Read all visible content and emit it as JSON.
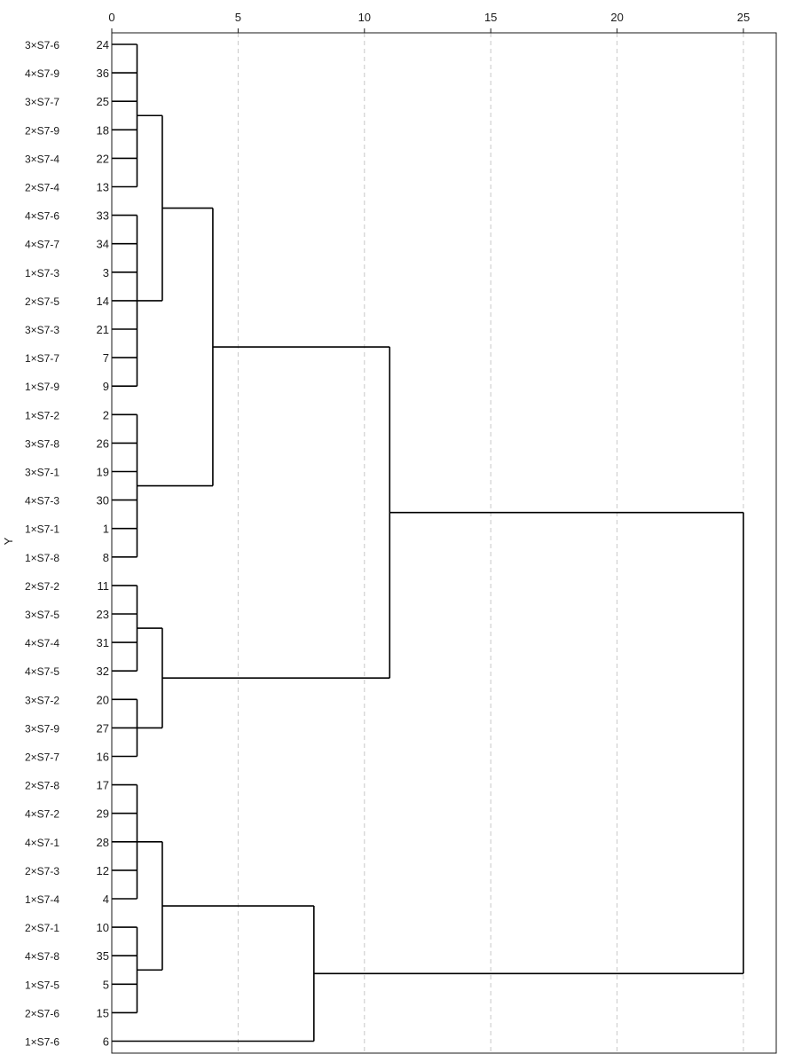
{
  "chart_data": {
    "type": "dendrogram",
    "title": "",
    "ylabel": "Y",
    "xlabel": "",
    "xlim": [
      0,
      25
    ],
    "x_ticks": [
      0,
      5,
      10,
      15,
      20,
      25
    ],
    "grid": "vertical dashed",
    "leaves": [
      {
        "name": "3×S7-6",
        "id": "24"
      },
      {
        "name": "4×S7-9",
        "id": "36"
      },
      {
        "name": "3×S7-7",
        "id": "25"
      },
      {
        "name": "2×S7-9",
        "id": "18"
      },
      {
        "name": "3×S7-4",
        "id": "22"
      },
      {
        "name": "2×S7-4",
        "id": "13"
      },
      {
        "name": "4×S7-6",
        "id": "33"
      },
      {
        "name": "4×S7-7",
        "id": "34"
      },
      {
        "name": "1×S7-3",
        "id": "3"
      },
      {
        "name": "2×S7-5",
        "id": "14"
      },
      {
        "name": "3×S7-3",
        "id": "21"
      },
      {
        "name": "1×S7-7",
        "id": "7"
      },
      {
        "name": "1×S7-9",
        "id": "9"
      },
      {
        "name": "1×S7-2",
        "id": "2"
      },
      {
        "name": "3×S7-8",
        "id": "26"
      },
      {
        "name": "3×S7-1",
        "id": "19"
      },
      {
        "name": "4×S7-3",
        "id": "30"
      },
      {
        "name": "1×S7-1",
        "id": "1"
      },
      {
        "name": "1×S7-8",
        "id": "8"
      },
      {
        "name": "2×S7-2",
        "id": "11"
      },
      {
        "name": "3×S7-5",
        "id": "23"
      },
      {
        "name": "4×S7-4",
        "id": "31"
      },
      {
        "name": "4×S7-5",
        "id": "32"
      },
      {
        "name": "3×S7-2",
        "id": "20"
      },
      {
        "name": "3×S7-9",
        "id": "27"
      },
      {
        "name": "2×S7-7",
        "id": "16"
      },
      {
        "name": "2×S7-8",
        "id": "17"
      },
      {
        "name": "4×S7-2",
        "id": "29"
      },
      {
        "name": "4×S7-1",
        "id": "28"
      },
      {
        "name": "2×S7-3",
        "id": "12"
      },
      {
        "name": "1×S7-4",
        "id": "4"
      },
      {
        "name": "2×S7-1",
        "id": "10"
      },
      {
        "name": "4×S7-8",
        "id": "35"
      },
      {
        "name": "1×S7-5",
        "id": "5"
      },
      {
        "name": "2×S7-6",
        "id": "15"
      },
      {
        "name": "1×S7-6",
        "id": "6"
      }
    ],
    "merges": [
      {
        "id": "A",
        "height": 1,
        "children": [
          0,
          1,
          2,
          3,
          4,
          5
        ]
      },
      {
        "id": "B",
        "height": 1,
        "children": [
          6,
          7,
          8,
          9,
          10,
          11,
          12
        ]
      },
      {
        "id": "C",
        "height": 1,
        "children": [
          13,
          14,
          15,
          16,
          17,
          18
        ]
      },
      {
        "id": "D",
        "height": 1,
        "children": [
          19,
          20,
          21,
          22
        ]
      },
      {
        "id": "E",
        "height": 1,
        "children": [
          23,
          24,
          25
        ]
      },
      {
        "id": "F",
        "height": 1,
        "children": [
          26,
          27,
          28,
          29,
          30
        ]
      },
      {
        "id": "G",
        "height": 1,
        "children": [
          31,
          32,
          33,
          34
        ]
      },
      {
        "id": "H",
        "height": 2,
        "children": [
          "A",
          "B"
        ]
      },
      {
        "id": "I",
        "height": 2,
        "children": [
          "D",
          "E"
        ]
      },
      {
        "id": "J",
        "height": 2,
        "children": [
          "F",
          "G"
        ]
      },
      {
        "id": "K",
        "height": 4,
        "children": [
          "H",
          "C"
        ]
      },
      {
        "id": "L",
        "height": 8,
        "children": [
          "J",
          35
        ]
      },
      {
        "id": "M",
        "height": 11,
        "children": [
          "K",
          "I"
        ]
      },
      {
        "id": "N",
        "height": 25,
        "children": [
          "M",
          "L"
        ]
      }
    ]
  }
}
